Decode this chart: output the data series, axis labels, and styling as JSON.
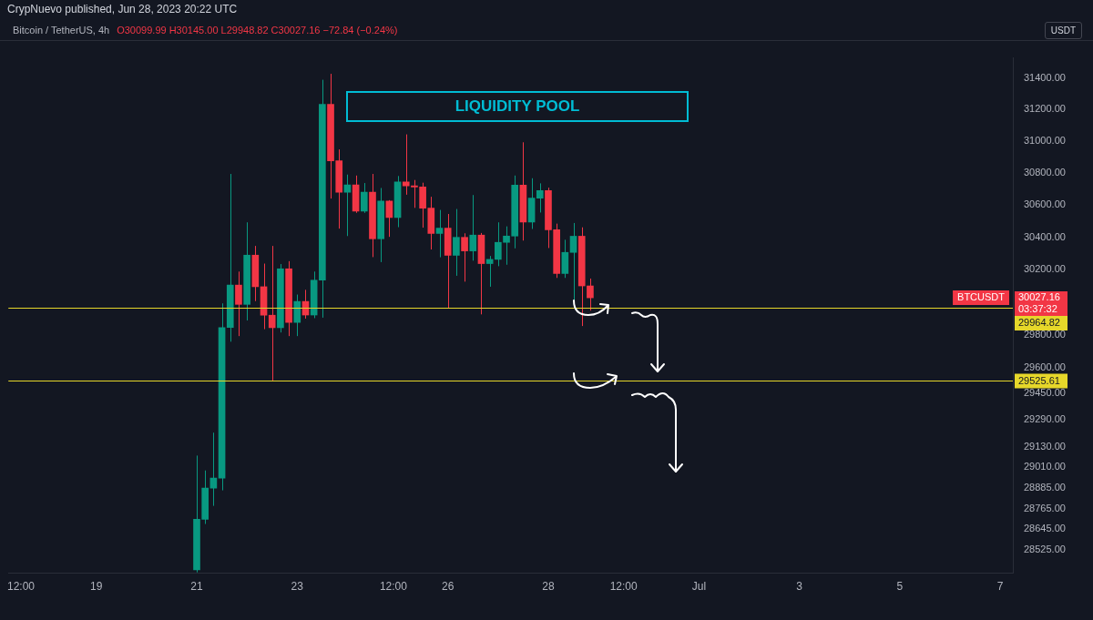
{
  "chart_data": {
    "type": "candlestick",
    "title": "CrypNuevo published, Jun 28, 2023 20:22 UTC",
    "subtitle": "Bitcoin / TetherUS, 4h",
    "ylabel": "USDT",
    "log": true,
    "x": [
      "2023-06-21T00:00",
      "2023-06-21T04:00",
      "2023-06-21T08:00",
      "2023-06-21T12:00",
      "2023-06-21T16:00",
      "2023-06-21T20:00",
      "2023-06-22T00:00",
      "2023-06-22T04:00",
      "2023-06-22T08:00",
      "2023-06-22T12:00",
      "2023-06-22T16:00",
      "2023-06-22T20:00",
      "2023-06-23T00:00",
      "2023-06-23T04:00",
      "2023-06-23T08:00",
      "2023-06-23T12:00",
      "2023-06-23T16:00",
      "2023-06-23T20:00",
      "2023-06-24T00:00",
      "2023-06-24T04:00",
      "2023-06-24T08:00",
      "2023-06-24T12:00",
      "2023-06-24T16:00",
      "2023-06-24T20:00",
      "2023-06-25T00:00",
      "2023-06-25T04:00",
      "2023-06-25T08:00",
      "2023-06-25T12:00",
      "2023-06-25T16:00",
      "2023-06-25T20:00",
      "2023-06-26T00:00",
      "2023-06-26T04:00",
      "2023-06-26T08:00",
      "2023-06-26T12:00",
      "2023-06-26T16:00",
      "2023-06-26T20:00",
      "2023-06-27T00:00",
      "2023-06-27T04:00",
      "2023-06-27T08:00",
      "2023-06-27T12:00",
      "2023-06-27T16:00",
      "2023-06-27T20:00",
      "2023-06-28T00:00",
      "2023-06-28T04:00",
      "2023-06-28T08:00",
      "2023-06-28T12:00",
      "2023-06-28T16:00",
      "2023-06-28T20:00"
    ],
    "ohlc": [
      [
        28410,
        29078,
        28395,
        28703
      ],
      [
        28703,
        28990,
        28676,
        28886
      ],
      [
        28886,
        29214,
        28782,
        28945
      ],
      [
        28945,
        29993,
        28873,
        29846
      ],
      [
        29846,
        30794,
        29760,
        30105
      ],
      [
        30105,
        30188,
        29794,
        29987
      ],
      [
        29987,
        30492,
        29889,
        30289
      ],
      [
        30289,
        30346,
        30007,
        30095
      ],
      [
        30095,
        30237,
        29836,
        29921
      ],
      [
        29921,
        30346,
        29525.61,
        29845
      ],
      [
        29845,
        30234,
        29816,
        30205
      ],
      [
        30205,
        30252,
        29794,
        29877
      ],
      [
        29877,
        30047,
        29794,
        30005
      ],
      [
        30005,
        30076,
        29900,
        29922
      ],
      [
        29922,
        30188,
        29903,
        30135
      ],
      [
        30135,
        31390,
        29906,
        31234
      ],
      [
        31234,
        31428,
        30640,
        30876
      ],
      [
        30876,
        30948,
        30453,
        30680
      ],
      [
        30680,
        30790,
        30407,
        30726
      ],
      [
        30726,
        30784,
        30551,
        30562
      ],
      [
        30562,
        30737,
        30551,
        30680
      ],
      [
        30680,
        30794,
        30277,
        30390
      ],
      [
        30390,
        30706,
        30246,
        30624
      ],
      [
        30624,
        30630,
        30402,
        30522
      ],
      [
        30522,
        30781,
        30462,
        30744
      ],
      [
        30744,
        31043,
        30664,
        30719
      ],
      [
        30719,
        30756,
        30582,
        30712
      ],
      [
        30712,
        30739,
        30459,
        30580
      ],
      [
        30580,
        30651,
        30324,
        30423
      ],
      [
        30423,
        30569,
        30276,
        30456
      ],
      [
        30456,
        30544,
        29964.82,
        30288
      ],
      [
        30288,
        30575,
        30162,
        30399
      ],
      [
        30399,
        30424,
        30126,
        30315
      ],
      [
        30315,
        30662,
        30255,
        30413
      ],
      [
        30413,
        30426,
        29926,
        30237
      ],
      [
        30237,
        30284,
        30095,
        30263
      ],
      [
        30263,
        30492,
        30221,
        30368
      ],
      [
        30368,
        30467,
        30230,
        30407
      ],
      [
        30407,
        30784,
        30331,
        30724
      ],
      [
        30724,
        30993,
        30379,
        30494
      ],
      [
        30494,
        30767,
        30451,
        30643
      ],
      [
        30643,
        30735,
        30553,
        30690
      ],
      [
        30690,
        30708,
        30333,
        30446
      ],
      [
        30446,
        30484,
        30149,
        30176
      ],
      [
        30176,
        30384,
        30149,
        30306
      ],
      [
        30306,
        30488,
        30006,
        30406
      ],
      [
        30406,
        30461,
        29855,
        30099.99
      ],
      [
        30099.99,
        30145,
        29948.82,
        30027.16
      ]
    ],
    "colors": [
      "#089981",
      "#089981",
      "#089981",
      "#089981",
      "#089981",
      "#f23645",
      "#089981",
      "#f23645",
      "#f23645",
      "#f23645",
      "#089981",
      "#f23645",
      "#089981",
      "#f23645",
      "#089981",
      "#089981",
      "#f23645",
      "#f23645",
      "#089981",
      "#f23645",
      "#089981",
      "#f23645",
      "#089981",
      "#f23645",
      "#089981",
      "#f23645",
      "#f23645",
      "#f23645",
      "#f23645",
      "#089981",
      "#f23645",
      "#089981",
      "#f23645",
      "#089981",
      "#f23645",
      "#089981",
      "#089981",
      "#089981",
      "#089981",
      "#f23645",
      "#089981",
      "#089981",
      "#f23645",
      "#f23645",
      "#089981",
      "#089981",
      "#f23645",
      "#f23645"
    ],
    "xlim": [
      "2023-06-17T06:00",
      "2023-07-07T06:00"
    ],
    "xticks": [
      {
        "value": "2023-06-17T12:00",
        "label": "12:00"
      },
      {
        "value": "2023-06-19",
        "label": "19"
      },
      {
        "value": "2023-06-21",
        "label": "21"
      },
      {
        "value": "2023-06-23",
        "label": "23"
      },
      {
        "value": "2023-06-24T22:00",
        "label": "12:00"
      },
      {
        "value": "2023-06-26",
        "label": "26"
      },
      {
        "value": "2023-06-28",
        "label": "28"
      },
      {
        "value": "2023-06-29T12:00",
        "label": "12:00"
      },
      {
        "value": "2023-07-01",
        "label": "Jul"
      },
      {
        "value": "2023-07-03",
        "label": "3"
      },
      {
        "value": "2023-07-05",
        "label": "5"
      },
      {
        "value": "2023-07-07",
        "label": "7"
      }
    ],
    "ylim": [
      28390,
      31530
    ],
    "yticks": [
      {
        "value": 31400,
        "label": "31400.00"
      },
      {
        "value": 31200,
        "label": "31200.00"
      },
      {
        "value": 31000,
        "label": "31000.00"
      },
      {
        "value": 30800,
        "label": "30800.00"
      },
      {
        "value": 30600,
        "label": "30600.00"
      },
      {
        "value": 30400,
        "label": "30400.00"
      },
      {
        "value": 30200,
        "label": "30200.00"
      },
      {
        "value": 29800,
        "label": "29800.00"
      },
      {
        "value": 29600,
        "label": "29600.00"
      },
      {
        "value": 29450,
        "label": "29450.00"
      },
      {
        "value": 29290,
        "label": "29290.00"
      },
      {
        "value": 29130,
        "label": "29130.00"
      },
      {
        "value": 29010,
        "label": "29010.00"
      },
      {
        "value": 28885,
        "label": "28885.00"
      },
      {
        "value": 28765,
        "label": "28765.00"
      },
      {
        "value": 28645,
        "label": "28645.00"
      },
      {
        "value": 28525,
        "label": "28525.00"
      }
    ],
    "ref_lines": [
      {
        "axis": "y",
        "value": 29964.82,
        "label": "29964.82",
        "color": "#e6d72a"
      },
      {
        "axis": "y",
        "value": 29525.61,
        "label": "29525.61",
        "color": "#e6d72a"
      }
    ],
    "annotations": [
      "O30099.99 H30145.00 L29948.82 C30027.16 −72.84 (−0.24%)",
      "LIQUIDITY POOL",
      "BTCUSDT",
      "30027.16",
      "03:37:32"
    ]
  }
}
